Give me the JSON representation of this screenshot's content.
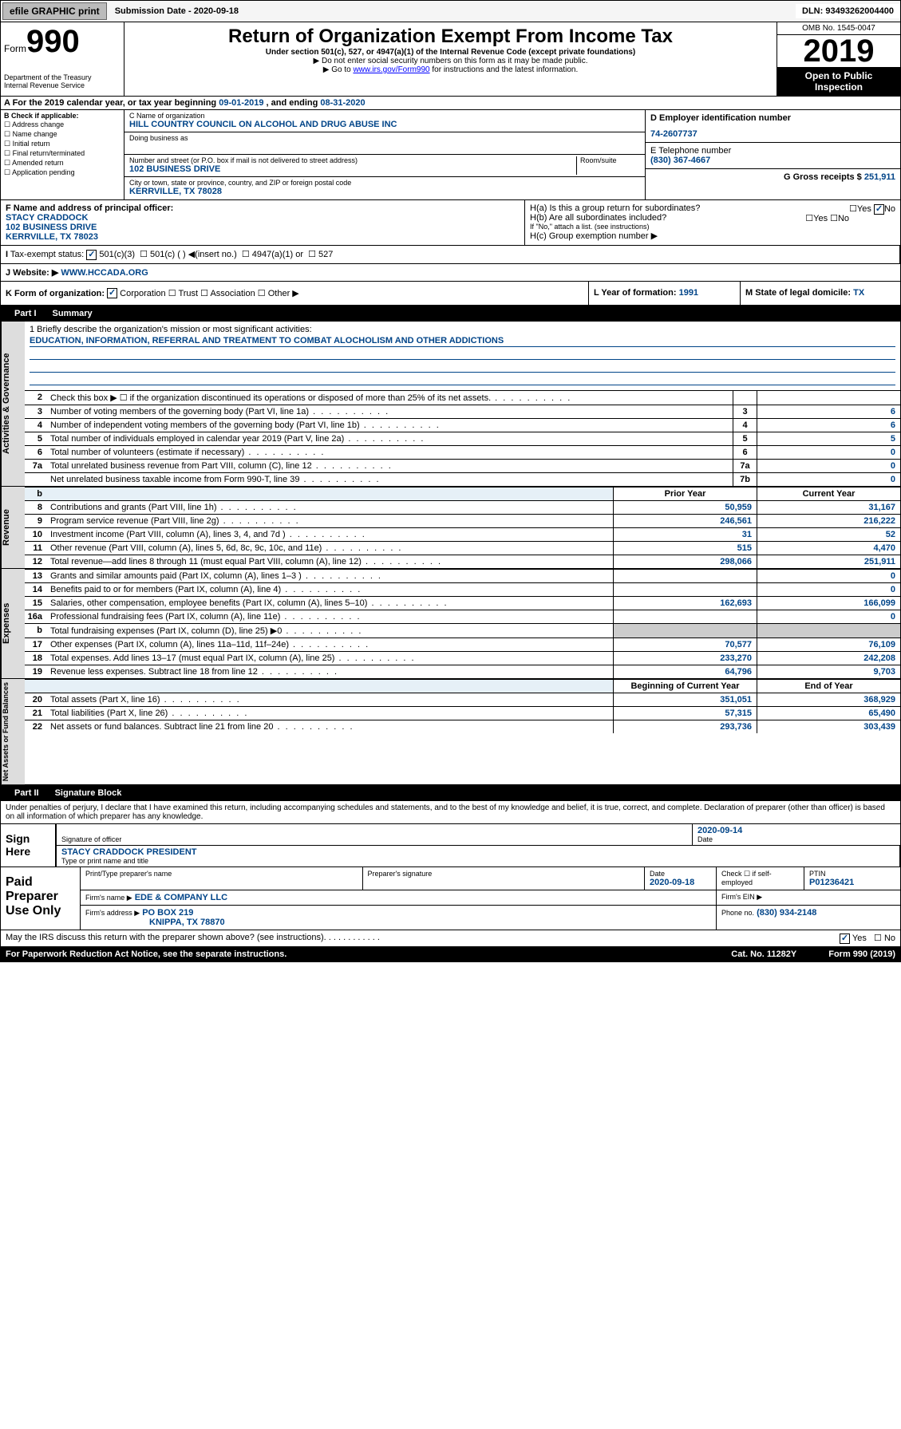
{
  "topbar": {
    "efile": "efile GRAPHIC print",
    "sub": "Submission Date - 2020-09-18",
    "dln": "DLN: 93493262004400"
  },
  "header": {
    "form": "Form",
    "num": "990",
    "dept": "Department of the Treasury\nInternal Revenue Service",
    "title": "Return of Organization Exempt From Income Tax",
    "sub1": "Under section 501(c), 527, or 4947(a)(1) of the Internal Revenue Code (except private foundations)",
    "sub2": "▶ Do not enter social security numbers on this form as it may be made public.",
    "sub3": "▶ Go to www.irs.gov/Form990 for instructions and the latest information.",
    "omb": "OMB No. 1545-0047",
    "year": "2019",
    "open": "Open to Public Inspection"
  },
  "rowA": {
    "lbl": "A For the 2019 calendar year, or tax year beginning ",
    "beg": "09-01-2019",
    "mid": " , and ending ",
    "end": "08-31-2020"
  },
  "sectionB": {
    "hdr": "B Check if applicable:",
    "items": [
      "Address change",
      "Name change",
      "Initial return",
      "Final return/terminated",
      "Amended return",
      "Application pending"
    ]
  },
  "sectionC": {
    "nameLbl": "C Name of organization",
    "name": "HILL COUNTRY COUNCIL ON ALCOHOL AND DRUG ABUSE INC",
    "dbaLbl": "Doing business as",
    "dba": "",
    "addrLbl": "Number and street (or P.O. box if mail is not delivered to street address)",
    "roomLbl": "Room/suite",
    "addr": "102 BUSINESS DRIVE",
    "cityLbl": "City or town, state or province, country, and ZIP or foreign postal code",
    "city": "KERRVILLE, TX  78028"
  },
  "sectionD": {
    "lbl": "D Employer identification number",
    "val": "74-2607737"
  },
  "sectionE": {
    "lbl": "E Telephone number",
    "val": "(830) 367-4667"
  },
  "sectionG": {
    "lbl": "G Gross receipts $",
    "val": "251,911"
  },
  "sectionF": {
    "lbl": "F Name and address of principal officer:",
    "name": "STACY CRADDOCK",
    "addr1": "102 BUSINESS DRIVE",
    "addr2": "KERRVILLE, TX  78023"
  },
  "sectionH": {
    "a": "H(a)  Is this a group return for subordinates?",
    "b": "H(b)  Are all subordinates included?",
    "bnote": "If \"No,\" attach a list. (see instructions)",
    "c": "H(c)  Group exemption number ▶"
  },
  "rowI": {
    "lbl": "Tax-exempt status:",
    "opt1": "501(c)(3)",
    "opt2": "501(c) (   ) ◀(insert no.)",
    "opt3": "4947(a)(1) or",
    "opt4": "527"
  },
  "rowJ": {
    "lbl": "J Website: ▶",
    "val": "WWW.HCCADA.ORG"
  },
  "rowK": {
    "lbl": "K Form of organization:",
    "c": "Corporation",
    "t": "Trust",
    "a": "Association",
    "o": "Other ▶"
  },
  "rowL": {
    "lbl": "L Year of formation:",
    "val": "1991"
  },
  "rowM": {
    "lbl": "M State of legal domicile:",
    "val": "TX"
  },
  "partI": {
    "hdr": "Part I",
    "title": "Summary"
  },
  "mission": {
    "lbl": "1 Briefly describe the organization's mission or most significant activities:",
    "val": "EDUCATION, INFORMATION, REFERRAL AND TREATMENT TO COMBAT ALOCHOLISM AND OTHER ADDICTIONS"
  },
  "lines_gov": [
    {
      "n": "2",
      "t": "Check this box ▶ ☐ if the organization discontinued its operations or disposed of more than 25% of its net assets."
    },
    {
      "n": "3",
      "t": "Number of voting members of the governing body (Part VI, line 1a)",
      "m": "3",
      "v": "6"
    },
    {
      "n": "4",
      "t": "Number of independent voting members of the governing body (Part VI, line 1b)",
      "m": "4",
      "v": "6"
    },
    {
      "n": "5",
      "t": "Total number of individuals employed in calendar year 2019 (Part V, line 2a)",
      "m": "5",
      "v": "5"
    },
    {
      "n": "6",
      "t": "Total number of volunteers (estimate if necessary)",
      "m": "6",
      "v": "0"
    },
    {
      "n": "7a",
      "t": "Total unrelated business revenue from Part VIII, column (C), line 12",
      "m": "7a",
      "v": "0"
    },
    {
      "n": "",
      "t": "Net unrelated business taxable income from Form 990-T, line 39",
      "m": "7b",
      "v": "0"
    }
  ],
  "rev_hdr": {
    "b": "b",
    "py": "Prior Year",
    "cy": "Current Year"
  },
  "lines_rev": [
    {
      "n": "8",
      "t": "Contributions and grants (Part VIII, line 1h)",
      "py": "50,959",
      "cy": "31,167"
    },
    {
      "n": "9",
      "t": "Program service revenue (Part VIII, line 2g)",
      "py": "246,561",
      "cy": "216,222"
    },
    {
      "n": "10",
      "t": "Investment income (Part VIII, column (A), lines 3, 4, and 7d )",
      "py": "31",
      "cy": "52"
    },
    {
      "n": "11",
      "t": "Other revenue (Part VIII, column (A), lines 5, 6d, 8c, 9c, 10c, and 11e)",
      "py": "515",
      "cy": "4,470"
    },
    {
      "n": "12",
      "t": "Total revenue—add lines 8 through 11 (must equal Part VIII, column (A), line 12)",
      "py": "298,066",
      "cy": "251,911"
    }
  ],
  "lines_exp": [
    {
      "n": "13",
      "t": "Grants and similar amounts paid (Part IX, column (A), lines 1–3 )",
      "py": "",
      "cy": "0"
    },
    {
      "n": "14",
      "t": "Benefits paid to or for members (Part IX, column (A), line 4)",
      "py": "",
      "cy": "0"
    },
    {
      "n": "15",
      "t": "Salaries, other compensation, employee benefits (Part IX, column (A), lines 5–10)",
      "py": "162,693",
      "cy": "166,099"
    },
    {
      "n": "16a",
      "t": "Professional fundraising fees (Part IX, column (A), line 11e)",
      "py": "",
      "cy": "0"
    },
    {
      "n": "b",
      "t": "Total fundraising expenses (Part IX, column (D), line 25) ▶0",
      "py": "",
      "cy": "",
      "nocell": true
    },
    {
      "n": "17",
      "t": "Other expenses (Part IX, column (A), lines 11a–11d, 11f–24e)",
      "py": "70,577",
      "cy": "76,109"
    },
    {
      "n": "18",
      "t": "Total expenses. Add lines 13–17 (must equal Part IX, column (A), line 25)",
      "py": "233,270",
      "cy": "242,208"
    },
    {
      "n": "19",
      "t": "Revenue less expenses. Subtract line 18 from line 12",
      "py": "64,796",
      "cy": "9,703"
    }
  ],
  "net_hdr": {
    "py": "Beginning of Current Year",
    "cy": "End of Year"
  },
  "lines_net": [
    {
      "n": "20",
      "t": "Total assets (Part X, line 16)",
      "py": "351,051",
      "cy": "368,929"
    },
    {
      "n": "21",
      "t": "Total liabilities (Part X, line 26)",
      "py": "57,315",
      "cy": "65,490"
    },
    {
      "n": "22",
      "t": "Net assets or fund balances. Subtract line 21 from line 20",
      "py": "293,736",
      "cy": "303,439"
    }
  ],
  "partII": {
    "hdr": "Part II",
    "title": "Signature Block"
  },
  "perjury": "Under penalties of perjury, I declare that I have examined this return, including accompanying schedules and statements, and to the best of my knowledge and belief, it is true, correct, and complete. Declaration of preparer (other than officer) is based on all information of which preparer has any knowledge.",
  "sign": {
    "here": "Sign Here",
    "sigoff": "Signature of officer",
    "date": "2020-09-14",
    "datelbl": "Date",
    "name": "STACY CRADDOCK  PRESIDENT",
    "typelbl": "Type or print name and title"
  },
  "prep": {
    "lbl": "Paid Preparer Use Only",
    "h1": "Print/Type preparer's name",
    "h2": "Preparer's signature",
    "h3": "Date",
    "h3v": "2020-09-18",
    "h4": "Check ☐ if self-employed",
    "h5": "PTIN",
    "h5v": "P01236421",
    "fn": "Firm's name  ▶",
    "fnv": "EDE & COMPANY LLC",
    "fein": "Firm's EIN ▶",
    "fa": "Firm's address ▶",
    "fav": "PO BOX 219",
    "fac": "KNIPPA, TX  78870",
    "ph": "Phone no.",
    "phv": "(830) 934-2148"
  },
  "discuss": {
    "q": "May the IRS discuss this return with the preparer shown above? (see instructions)",
    "y": "Yes",
    "n": "No"
  },
  "footer": {
    "l": "For Paperwork Reduction Act Notice, see the separate instructions.",
    "c": "Cat. No. 11282Y",
    "r": "Form 990 (2019)"
  }
}
